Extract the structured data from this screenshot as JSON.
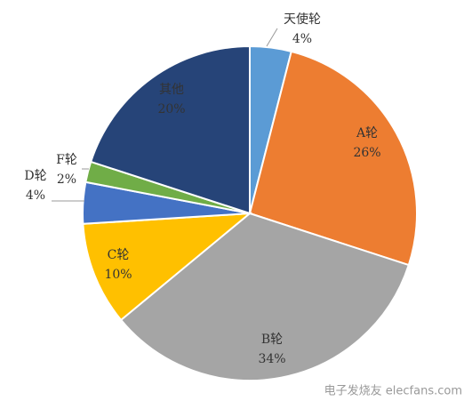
{
  "chart_data": {
    "type": "pie",
    "categories": [
      "天使轮",
      "A轮",
      "B轮",
      "C轮",
      "D轮",
      "F轮",
      "其他"
    ],
    "values": [
      4,
      26,
      34,
      10,
      4,
      2,
      20
    ],
    "value_labels": [
      "4%",
      "26%",
      "34%",
      "10%",
      "4%",
      "2%",
      "20%"
    ],
    "colors": [
      "#5b9bd5",
      "#ed7d31",
      "#a5a5a5",
      "#ffc000",
      "#4472c4",
      "#70ad47",
      "#264478"
    ]
  },
  "watermark": "电子发烧友 elecfans.com"
}
